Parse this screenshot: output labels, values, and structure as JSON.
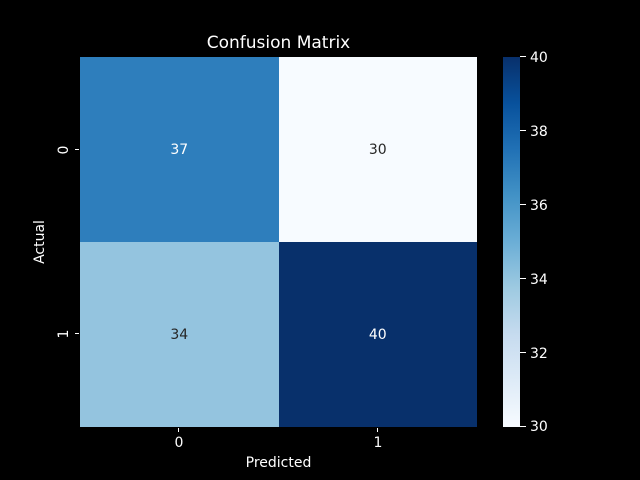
{
  "figure": {
    "background": "#000000",
    "text_color": "#ffffff"
  },
  "chart_data": {
    "type": "heatmap",
    "title": "Confusion Matrix",
    "xlabel": "Predicted",
    "ylabel": "Actual",
    "x_tick_labels": [
      "0",
      "1"
    ],
    "y_tick_labels": [
      "0",
      "1"
    ],
    "matrix": [
      [
        37,
        30
      ],
      [
        34,
        40
      ]
    ],
    "cell_colors": [
      [
        "#2e7ebc",
        "#f7fbff"
      ],
      [
        "#94c4df",
        "#08306b"
      ]
    ],
    "annotation_colors": [
      [
        "#ffffff",
        "#262626"
      ],
      [
        "#262626",
        "#ffffff"
      ]
    ],
    "colormap": "Blues",
    "colormap_stops_top_to_bottom": [
      "#08306b",
      "#08519c",
      "#2171b5",
      "#4292c6",
      "#6baed6",
      "#9ecae1",
      "#c6dbef",
      "#deebf7",
      "#f7fbff"
    ],
    "vmin": 30,
    "vmax": 40,
    "colorbar_tick_labels": [
      "40",
      "38",
      "36",
      "34",
      "32",
      "30"
    ],
    "grid": false,
    "legend_position": "colorbar-right"
  }
}
